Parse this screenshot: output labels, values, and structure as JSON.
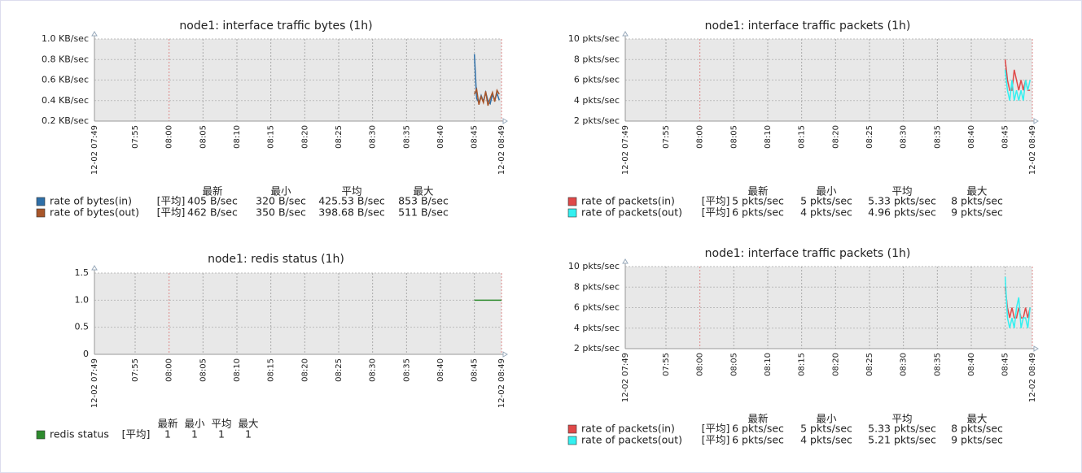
{
  "chart_data": [
    {
      "type": "line",
      "title": "node1: interface traffic bytes (1h)",
      "xlim": [
        "07:49:00",
        "08:49:00"
      ],
      "xticks": [
        {
          "value": "07:49:00",
          "label": "12-02 07:49"
        },
        {
          "value": "07:55:00",
          "label": "07:55"
        },
        {
          "value": "08:00:00",
          "label": "08:00"
        },
        {
          "value": "08:05:00",
          "label": "08:05"
        },
        {
          "value": "08:10:00",
          "label": "08:10"
        },
        {
          "value": "08:15:00",
          "label": "08:15"
        },
        {
          "value": "08:20:00",
          "label": "08:20"
        },
        {
          "value": "08:25:00",
          "label": "08:25"
        },
        {
          "value": "08:30:00",
          "label": "08:30"
        },
        {
          "value": "08:35:00",
          "label": "08:35"
        },
        {
          "value": "08:40:00",
          "label": "08:40"
        },
        {
          "value": "08:45:00",
          "label": "08:45"
        },
        {
          "value": "08:49:00",
          "label": "12-02 08:49"
        }
      ],
      "ylim": [
        200,
        1000
      ],
      "yticks": [
        {
          "value": 200,
          "label": "0.2 KB/sec"
        },
        {
          "value": 400,
          "label": "0.4 KB/sec"
        },
        {
          "value": 600,
          "label": "0.6 KB/sec"
        },
        {
          "value": 800,
          "label": "0.8 KB/sec"
        },
        {
          "value": 1000,
          "label": "1.0 KB/sec"
        }
      ],
      "grid": true,
      "x": [
        "08:45:00",
        "08:45:20",
        "08:45:40",
        "08:46:00",
        "08:46:20",
        "08:46:40",
        "08:47:00",
        "08:47:20",
        "08:47:40",
        "08:48:00",
        "08:48:20",
        "08:48:40"
      ],
      "stat_labels": [
        "最新",
        "最小",
        "平均",
        "最大"
      ],
      "series": [
        {
          "name": "rate of bytes(in)",
          "color": "#2e6fa8",
          "func": "[平均]",
          "values": [
            853,
            420,
            380,
            450,
            390,
            480,
            400,
            370,
            460,
            410,
            470,
            405
          ],
          "stats": [
            {
              "value": 405,
              "label": "405 B/sec"
            },
            {
              "value": 320,
              "label": "320 B/sec"
            },
            {
              "value": 425.53,
              "label": "425.53 B/sec"
            },
            {
              "value": 853,
              "label": "853 B/sec"
            }
          ]
        },
        {
          "name": "rate of bytes(out)",
          "color": "#a8562a",
          "func": "[平均]",
          "values": [
            462,
            510,
            360,
            440,
            380,
            490,
            350,
            420,
            480,
            390,
            500,
            462
          ],
          "stats": [
            {
              "value": 462,
              "label": "462 B/sec"
            },
            {
              "value": 350,
              "label": "350 B/sec"
            },
            {
              "value": 398.68,
              "label": "398.68 B/sec"
            },
            {
              "value": 511,
              "label": "511 B/sec"
            }
          ]
        }
      ]
    },
    {
      "type": "line",
      "title": "node1: interface traffic packets (1h)",
      "xlim": [
        "07:49:00",
        "08:49:00"
      ],
      "xticks": [
        {
          "value": "07:49:00",
          "label": "12-02 07:49"
        },
        {
          "value": "07:55:00",
          "label": "07:55"
        },
        {
          "value": "08:00:00",
          "label": "08:00"
        },
        {
          "value": "08:05:00",
          "label": "08:05"
        },
        {
          "value": "08:10:00",
          "label": "08:10"
        },
        {
          "value": "08:15:00",
          "label": "08:15"
        },
        {
          "value": "08:20:00",
          "label": "08:20"
        },
        {
          "value": "08:25:00",
          "label": "08:25"
        },
        {
          "value": "08:30:00",
          "label": "08:30"
        },
        {
          "value": "08:35:00",
          "label": "08:35"
        },
        {
          "value": "08:40:00",
          "label": "08:40"
        },
        {
          "value": "08:45:00",
          "label": "08:45"
        },
        {
          "value": "08:49:00",
          "label": "12-02 08:49"
        }
      ],
      "ylim": [
        2,
        10
      ],
      "yticks": [
        {
          "value": 2,
          "label": "2 pkts/sec"
        },
        {
          "value": 4,
          "label": "4 pkts/sec"
        },
        {
          "value": 6,
          "label": "6 pkts/sec"
        },
        {
          "value": 8,
          "label": "8 pkts/sec"
        },
        {
          "value": 10,
          "label": "10 pkts/sec"
        }
      ],
      "grid": true,
      "x": [
        "08:45:00",
        "08:45:20",
        "08:45:40",
        "08:46:00",
        "08:46:20",
        "08:46:40",
        "08:47:00",
        "08:47:20",
        "08:47:40",
        "08:48:00",
        "08:48:20",
        "08:48:40"
      ],
      "stat_labels": [
        "最新",
        "最小",
        "平均",
        "最大"
      ],
      "series": [
        {
          "name": "rate of packets(in)",
          "color": "#e04848",
          "func": "[平均]",
          "values": [
            8,
            6,
            5,
            5,
            7,
            6,
            5,
            6,
            5,
            6,
            5,
            5
          ],
          "stats": [
            {
              "value": 5,
              "label": "5 pkts/sec"
            },
            {
              "value": 5,
              "label": "5 pkts/sec"
            },
            {
              "value": 5.33,
              "label": "5.33 pkts/sec"
            },
            {
              "value": 8,
              "label": "8 pkts/sec"
            }
          ]
        },
        {
          "name": "rate of packets(out)",
          "color": "#33f0f0",
          "func": "[平均]",
          "values": [
            7,
            5,
            4,
            6,
            4,
            5,
            4,
            5,
            4,
            6,
            5,
            6
          ],
          "stats": [
            {
              "value": 6,
              "label": "6 pkts/sec"
            },
            {
              "value": 4,
              "label": "4 pkts/sec"
            },
            {
              "value": 4.96,
              "label": "4.96 pkts/sec"
            },
            {
              "value": 9,
              "label": "9 pkts/sec"
            }
          ]
        }
      ]
    },
    {
      "type": "line",
      "title": "node1: redis status (1h)",
      "xlim": [
        "07:49:00",
        "08:49:00"
      ],
      "xticks": [
        {
          "value": "07:49:00",
          "label": "12-02 07:49"
        },
        {
          "value": "07:55:00",
          "label": "07:55"
        },
        {
          "value": "08:00:00",
          "label": "08:00"
        },
        {
          "value": "08:05:00",
          "label": "08:05"
        },
        {
          "value": "08:10:00",
          "label": "08:10"
        },
        {
          "value": "08:15:00",
          "label": "08:15"
        },
        {
          "value": "08:20:00",
          "label": "08:20"
        },
        {
          "value": "08:25:00",
          "label": "08:25"
        },
        {
          "value": "08:30:00",
          "label": "08:30"
        },
        {
          "value": "08:35:00",
          "label": "08:35"
        },
        {
          "value": "08:40:00",
          "label": "08:40"
        },
        {
          "value": "08:45:00",
          "label": "08:45"
        },
        {
          "value": "08:49:00",
          "label": "12-02 08:49"
        }
      ],
      "ylim": [
        0,
        1.5
      ],
      "yticks": [
        0,
        0.5,
        {
          "value": 1,
          "label": "1.0"
        },
        1.5
      ],
      "grid": true,
      "x": [
        "08:45:00",
        "08:49:00"
      ],
      "stat_labels": [
        "最新",
        "最小",
        "平均",
        "最大"
      ],
      "series": [
        {
          "name": "redis status",
          "color": "#2e8b2e",
          "func": "[平均]",
          "values": [
            1,
            1
          ],
          "stats": [
            1,
            1,
            1,
            1
          ]
        }
      ]
    },
    {
      "type": "line",
      "title": "node1: interface traffic packets (1h)",
      "xlim": [
        "07:49:00",
        "08:49:00"
      ],
      "xticks": [
        {
          "value": "07:49:00",
          "label": "12-02 07:49"
        },
        {
          "value": "07:55:00",
          "label": "07:55"
        },
        {
          "value": "08:00:00",
          "label": "08:00"
        },
        {
          "value": "08:05:00",
          "label": "08:05"
        },
        {
          "value": "08:10:00",
          "label": "08:10"
        },
        {
          "value": "08:15:00",
          "label": "08:15"
        },
        {
          "value": "08:20:00",
          "label": "08:20"
        },
        {
          "value": "08:25:00",
          "label": "08:25"
        },
        {
          "value": "08:30:00",
          "label": "08:30"
        },
        {
          "value": "08:35:00",
          "label": "08:35"
        },
        {
          "value": "08:40:00",
          "label": "08:40"
        },
        {
          "value": "08:45:00",
          "label": "08:45"
        },
        {
          "value": "08:49:00",
          "label": "12-02 08:49"
        }
      ],
      "ylim": [
        2,
        10
      ],
      "yticks": [
        {
          "value": 2,
          "label": "2 pkts/sec"
        },
        {
          "value": 4,
          "label": "4 pkts/sec"
        },
        {
          "value": 6,
          "label": "6 pkts/sec"
        },
        {
          "value": 8,
          "label": "8 pkts/sec"
        },
        {
          "value": 10,
          "label": "10 pkts/sec"
        }
      ],
      "grid": true,
      "x": [
        "08:45:00",
        "08:45:20",
        "08:45:40",
        "08:46:00",
        "08:46:20",
        "08:46:40",
        "08:47:00",
        "08:47:20",
        "08:47:40",
        "08:48:00",
        "08:48:20",
        "08:48:40"
      ],
      "stat_labels": [
        "最新",
        "最小",
        "平均",
        "最大"
      ],
      "series": [
        {
          "name": "rate of packets(in)",
          "color": "#e04848",
          "func": "[平均]",
          "values": [
            8,
            6,
            5,
            6,
            5,
            5,
            6,
            5,
            5,
            6,
            5,
            6
          ],
          "stats": [
            {
              "value": 6,
              "label": "6 pkts/sec"
            },
            {
              "value": 5,
              "label": "5 pkts/sec"
            },
            {
              "value": 5.33,
              "label": "5.33 pkts/sec"
            },
            {
              "value": 8,
              "label": "8 pkts/sec"
            }
          ]
        },
        {
          "name": "rate of packets(out)",
          "color": "#33f0f0",
          "func": "[平均]",
          "values": [
            9,
            5,
            4,
            5,
            4,
            6,
            7,
            4,
            5,
            5,
            4,
            6
          ],
          "stats": [
            {
              "value": 6,
              "label": "6 pkts/sec"
            },
            {
              "value": 4,
              "label": "4 pkts/sec"
            },
            {
              "value": 5.21,
              "label": "5.21 pkts/sec"
            },
            {
              "value": 9,
              "label": "9 pkts/sec"
            }
          ]
        }
      ]
    }
  ]
}
